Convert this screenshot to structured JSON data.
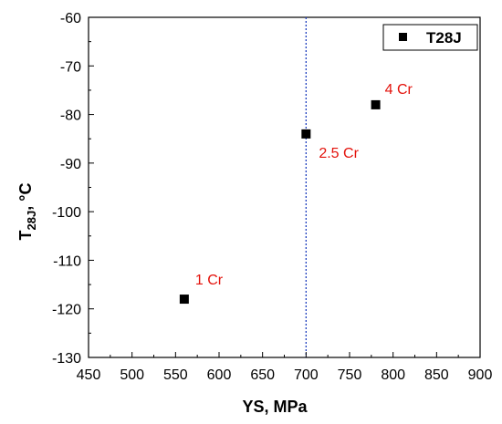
{
  "chart_data": {
    "type": "scatter",
    "xlabel": "YS, MPa",
    "ylabel": {
      "main": "T",
      "sub": "28J",
      "unit": ", °C"
    },
    "xlim": [
      450,
      900
    ],
    "ylim": [
      -130,
      -60
    ],
    "xticks": [
      450,
      500,
      550,
      600,
      650,
      700,
      750,
      800,
      850,
      900
    ],
    "yticks": [
      -60,
      -70,
      -80,
      -90,
      -100,
      -110,
      -120,
      -130
    ],
    "series": [
      {
        "name": "T28J",
        "color": "#000000",
        "marker": "square",
        "x": [
          560,
          700,
          780
        ],
        "y": [
          -118,
          -84,
          -78
        ]
      }
    ],
    "reference_line": {
      "x": 700,
      "color": "#1f3fbf",
      "style": "dotted"
    },
    "annotations": [
      {
        "text": "1 Cr",
        "x": 560,
        "y": -118
      },
      {
        "text": "2.5 Cr",
        "x": 700,
        "y": -84
      },
      {
        "text": "4 Cr",
        "x": 780,
        "y": -78
      }
    ],
    "annotation_color": "#e3120b",
    "legend": {
      "placement": "top-right",
      "entries": [
        "T28J"
      ]
    },
    "grid": false
  }
}
